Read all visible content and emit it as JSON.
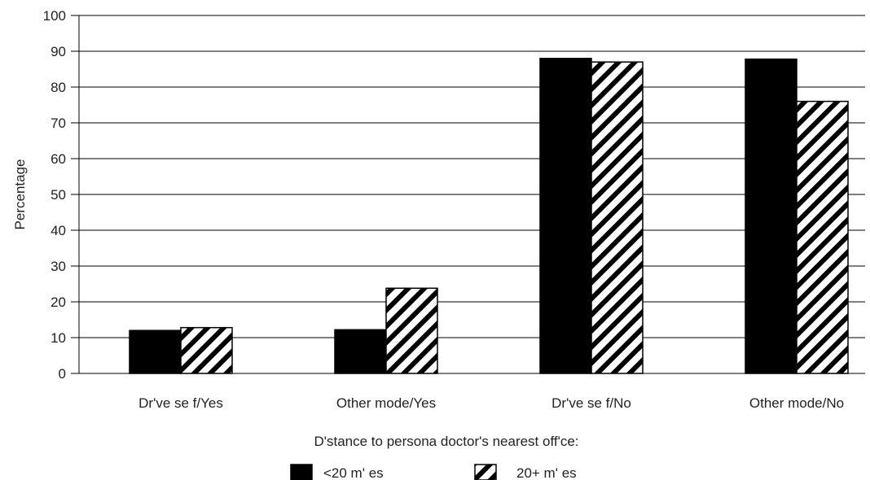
{
  "chart_data": {
    "type": "bar",
    "title": "",
    "xlabel": "D'stance to persona doctor's nearest off'ce:",
    "ylabel": "Percentage",
    "ylim": [
      0,
      100
    ],
    "yticks": [
      "0",
      "10",
      "20",
      "30",
      "40",
      "50",
      "60",
      "70",
      "80",
      "90",
      "100"
    ],
    "categories": [
      "Dr've se f/Yes",
      "Other mode/Yes",
      "Dr've se f/No",
      "Other mode/No"
    ],
    "series": [
      {
        "name": "<20 m' es",
        "values": [
          12,
          12.2,
          88,
          87.8
        ],
        "fill": "solid",
        "color": "#000000"
      },
      {
        "name": "20+ m' es",
        "values": [
          12.8,
          23.8,
          87,
          76
        ],
        "fill": "hatched",
        "color": "#000000"
      }
    ],
    "grid": true,
    "legend_position": "bottom"
  }
}
